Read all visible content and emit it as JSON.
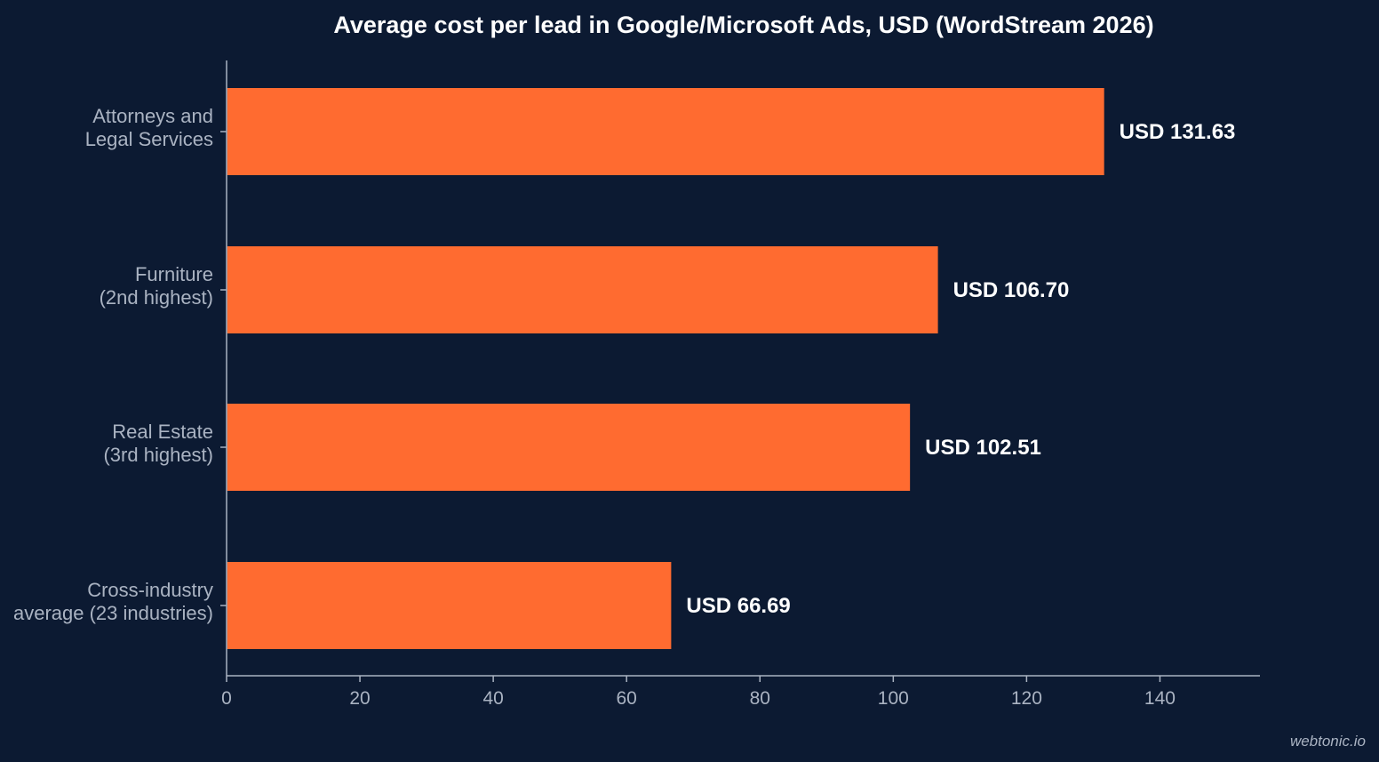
{
  "chart_data": {
    "type": "bar",
    "orientation": "horizontal",
    "title": "Average cost per lead in Google/Microsoft Ads, USD (WordStream 2026)",
    "categories": [
      [
        "Attorneys and",
        "Legal Services"
      ],
      [
        "Furniture",
        "(2nd highest)"
      ],
      [
        "Real Estate",
        "(3rd highest)"
      ],
      [
        "Cross-industry",
        "average (23 industries)"
      ]
    ],
    "values": [
      131.63,
      106.7,
      102.51,
      66.69
    ],
    "value_labels": [
      "USD 131.63",
      "USD 106.70",
      "USD 102.51",
      "USD 66.69"
    ],
    "xlim": [
      0,
      155
    ],
    "xticks": [
      0,
      20,
      40,
      60,
      80,
      100,
      120,
      140
    ],
    "xlabel": "",
    "ylabel": "",
    "grid": false,
    "bar_color": "#ff6b30",
    "background_color": "#0c1a32"
  },
  "watermark": "webtonic.io"
}
